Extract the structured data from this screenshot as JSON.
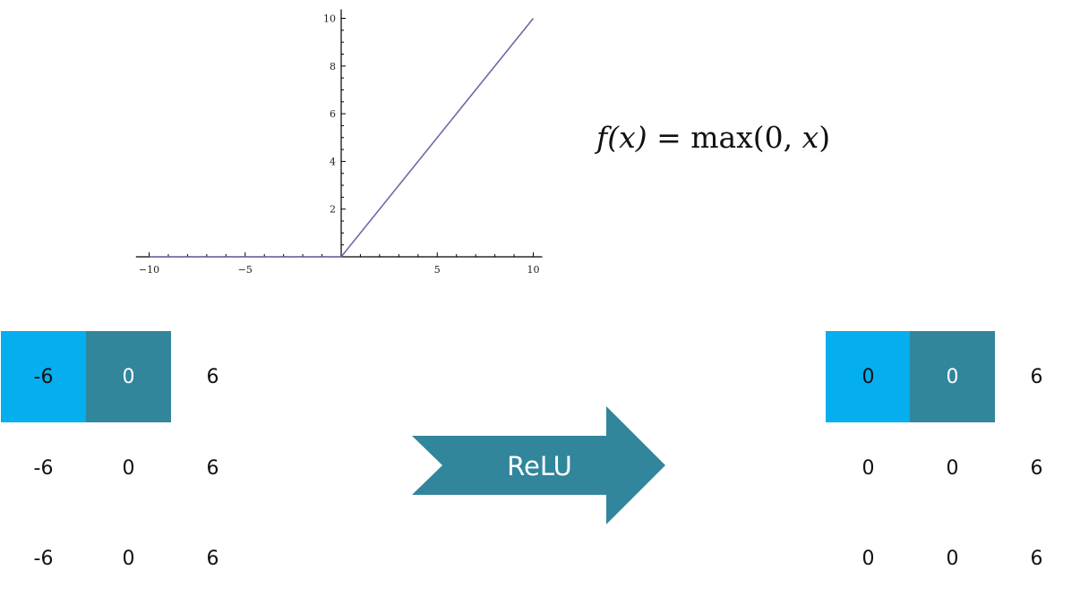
{
  "chart_data": {
    "type": "line",
    "x": [
      -10,
      0,
      10
    ],
    "y": [
      0,
      0,
      10
    ],
    "xlim": [
      -10.5,
      10
    ],
    "ylim": [
      0,
      10.3
    ],
    "x_ticks": [
      -10,
      -5,
      5,
      10
    ],
    "y_ticks": [
      2,
      4,
      6,
      8,
      10
    ],
    "x_tick_labels": [
      "−10",
      "−5",
      "5",
      "10"
    ],
    "y_tick_labels": [
      "2",
      "4",
      "6",
      "8",
      "10"
    ],
    "line_color": "#6d6aa8",
    "grid": false
  },
  "formula": {
    "fx": "f(x)",
    "equals": " = ",
    "rhs_fn": "max(0, ",
    "rhs_var": "x",
    "rhs_close": ")"
  },
  "input_matrix": [
    [
      "-6",
      "0",
      "6"
    ],
    [
      "-6",
      "0",
      "6"
    ],
    [
      "-6",
      "0",
      "6"
    ]
  ],
  "output_matrix": [
    [
      "0",
      "0",
      "6"
    ],
    [
      "0",
      "0",
      "6"
    ],
    [
      "0",
      "0",
      "6"
    ]
  ],
  "arrow": {
    "label": "ReLU",
    "color": "#31869c"
  },
  "colors": {
    "bright_cell": "#05aeee",
    "dark_cell": "#31869c"
  }
}
